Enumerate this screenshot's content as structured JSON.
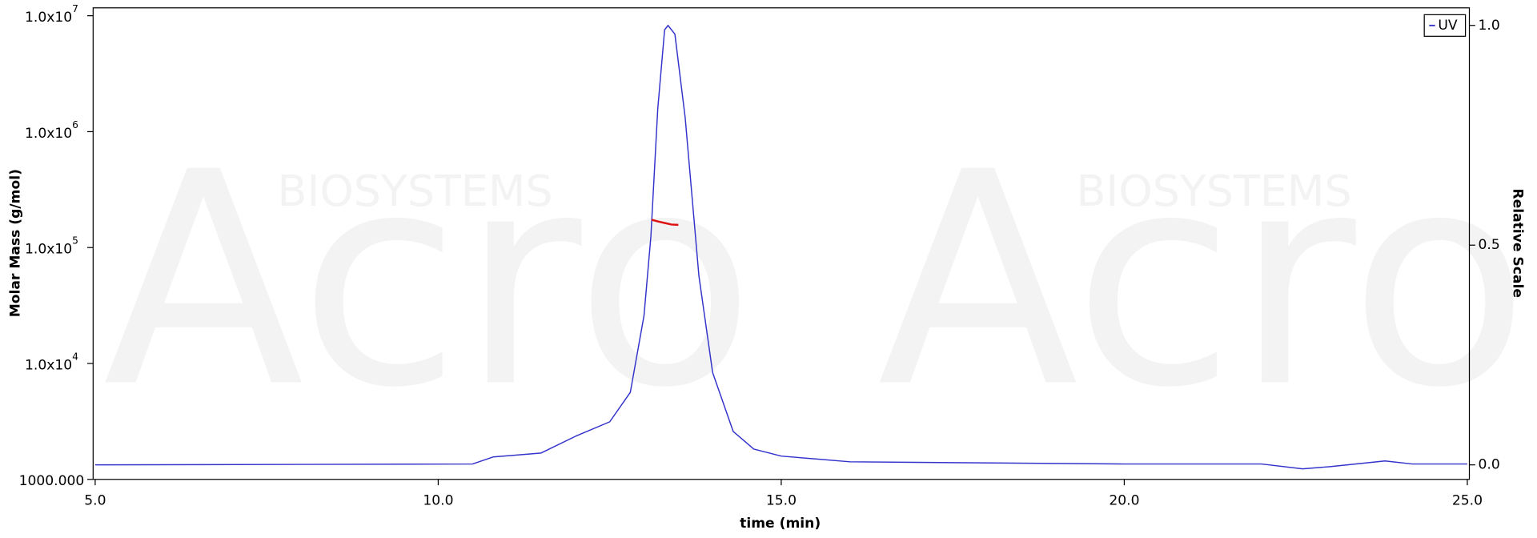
{
  "chart_data": {
    "type": "line",
    "watermark": "Acro",
    "watermark_sub": "BIOSYSTEMS",
    "x_label": "time (min)",
    "y_label": "Molar Mass (g/mol)",
    "y2_label": "Relative Scale",
    "xlim": [
      4.97,
      25.03
    ],
    "xticks": [
      {
        "value": 5,
        "label": "5.0"
      },
      {
        "value": 10,
        "label": "10.0"
      },
      {
        "value": 15,
        "label": "15.0"
      },
      {
        "value": 20,
        "label": "20.0"
      },
      {
        "value": 25,
        "label": "25.0"
      }
    ],
    "ylim": [
      1000,
      11700000
    ],
    "ylog": true,
    "yticks": [
      {
        "value": 10000000,
        "label": "1.0x10",
        "exponent": "7"
      },
      {
        "value": 1000000,
        "label": "1.0x10",
        "exponent": "6"
      },
      {
        "value": 100000,
        "label": "1.0x10",
        "exponent": "5"
      },
      {
        "value": 10000,
        "label": "1.0x10",
        "exponent": "4"
      },
      {
        "value": 1000,
        "label": "1000.000"
      }
    ],
    "y2lim": [
      -0.033,
      1.04
    ],
    "y2ticks": [
      {
        "value": 0,
        "label": "0.0"
      },
      {
        "value": 0.5,
        "label": "0.5"
      },
      {
        "value": 1,
        "label": "1.0"
      }
    ],
    "legend": "top-right",
    "series": [
      {
        "name": "UV",
        "color": "#3333cc",
        "axis": "y2",
        "x": [
          5.0,
          10.5,
          10.8,
          11.5,
          12.0,
          12.5,
          12.8,
          13.0,
          13.1,
          13.2,
          13.3,
          13.35,
          13.45,
          13.6,
          13.8,
          14.0,
          14.3,
          14.6,
          15.0,
          16.0,
          20.0,
          22.0,
          22.6,
          23.0,
          23.8,
          24.2,
          25.0
        ],
        "values": [
          0.0,
          0.002,
          0.018,
          0.027,
          0.065,
          0.098,
          0.165,
          0.34,
          0.52,
          0.81,
          0.99,
          1.0,
          0.98,
          0.79,
          0.43,
          0.21,
          0.076,
          0.036,
          0.02,
          0.007,
          0.002,
          0.002,
          -0.009,
          -0.004,
          0.009,
          0.002,
          0.002
        ]
      },
      {
        "color": "#dd1111",
        "axis": "y",
        "x": [
          13.11,
          13.2,
          13.3,
          13.4,
          13.5
        ],
        "values": [
          174000,
          168000,
          163000,
          158000,
          157000
        ]
      }
    ]
  }
}
